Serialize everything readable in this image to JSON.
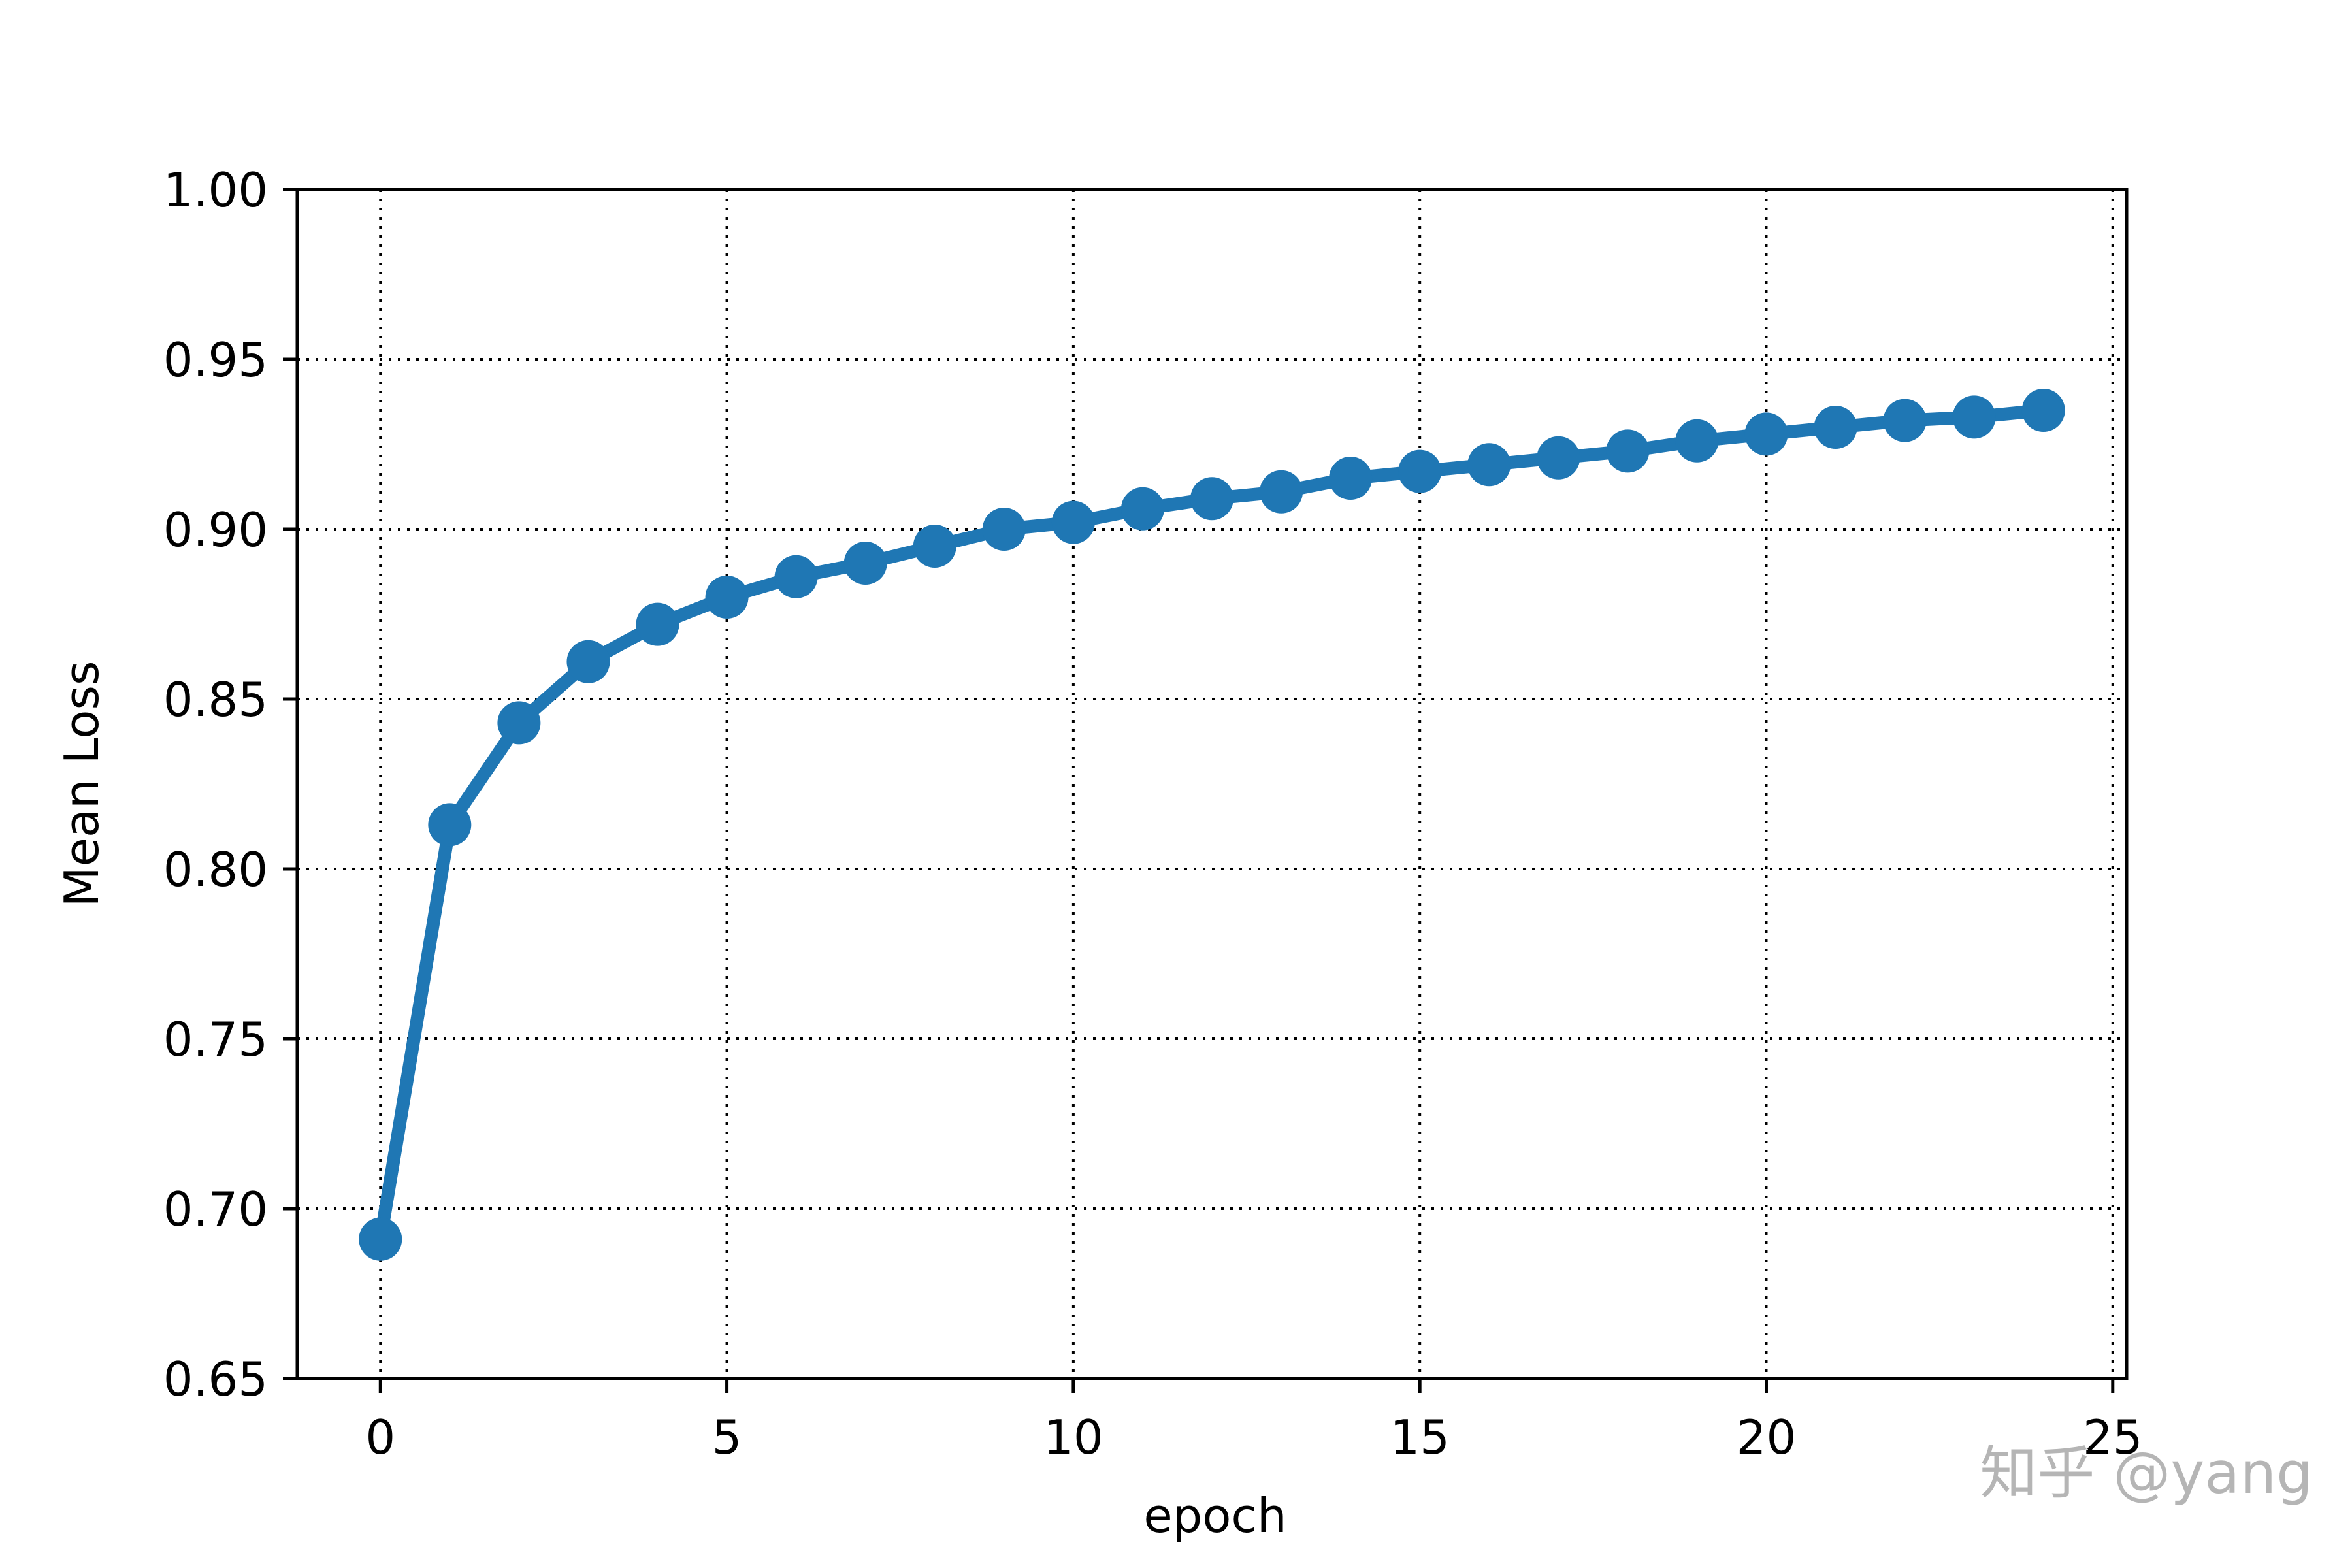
{
  "chart_data": {
    "type": "line",
    "x": [
      0,
      1,
      2,
      3,
      4,
      5,
      6,
      7,
      8,
      9,
      10,
      11,
      12,
      13,
      14,
      15,
      16,
      17,
      18,
      19,
      20,
      21,
      22,
      23,
      24
    ],
    "series": [
      {
        "values": [
          0.691,
          0.813,
          0.843,
          0.861,
          0.872,
          0.88,
          0.886,
          0.89,
          0.895,
          0.9,
          0.902,
          0.906,
          0.909,
          0.911,
          0.915,
          0.917,
          0.919,
          0.921,
          0.923,
          0.926,
          0.928,
          0.93,
          0.932,
          0.933,
          0.935
        ],
        "color": "#1f77b4",
        "marker": "circle"
      }
    ],
    "xlabel": "epoch",
    "ylabel": "Mean Loss",
    "xlim": [
      -1.2,
      25.2
    ],
    "ylim": [
      0.65,
      1.0
    ],
    "x_ticks": [
      0,
      5,
      10,
      15,
      20,
      25
    ],
    "x_tick_labels": [
      "0",
      "5",
      "10",
      "15",
      "20",
      "25"
    ],
    "y_ticks": [
      0.65,
      0.7,
      0.75,
      0.8,
      0.85,
      0.9,
      0.95,
      1.0
    ],
    "y_tick_labels": [
      "0.65",
      "0.70",
      "0.75",
      "0.80",
      "0.85",
      "0.90",
      "0.95",
      "1.00"
    ],
    "grid": true,
    "grid_style": "dotted"
  },
  "watermark": "知乎 @yang"
}
